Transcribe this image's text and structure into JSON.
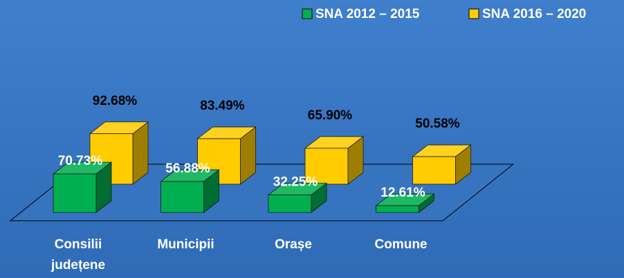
{
  "chart_data": {
    "type": "bar3d",
    "categories": [
      "Consilii județene",
      "Municipii",
      "Orașe",
      "Comune"
    ],
    "series": [
      {
        "name": "SNA 2012 – 2015",
        "color": "#00b050",
        "values": [
          70.73,
          56.88,
          32.25,
          12.61
        ],
        "value_labels": [
          "70.73%",
          "56.88%",
          "32.25%",
          "12.61%"
        ]
      },
      {
        "name": "SNA 2016 – 2020",
        "color": "#ffcc00",
        "values": [
          92.68,
          83.49,
          65.9,
          50.58
        ],
        "value_labels": [
          "92.68%",
          "83.49%",
          "65.90%",
          "50.58%"
        ]
      }
    ],
    "legend": "top-right"
  }
}
